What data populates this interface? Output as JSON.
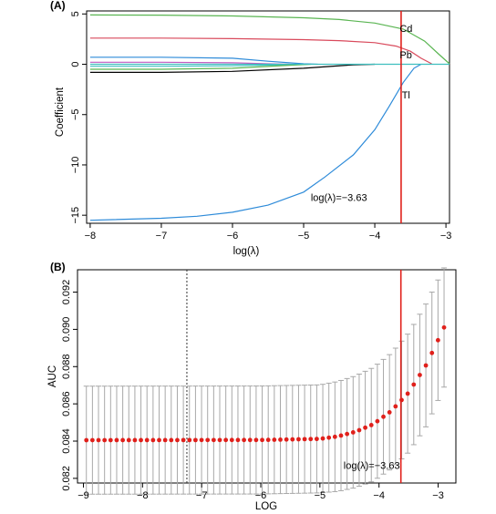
{
  "panel_a": {
    "label": "(A)",
    "chart_data": {
      "type": "line",
      "title": "",
      "xlabel": "log(λ)",
      "ylabel": "Coefficient",
      "xlim": [
        -8.05,
        -2.95
      ],
      "ylim": [
        -15.8,
        5.3
      ],
      "x_ticks": [
        -8,
        -7,
        -6,
        -5,
        -4,
        -3
      ],
      "x_tick_labels": [
        "−8",
        "−7",
        "−6",
        "−5",
        "−4",
        "−3"
      ],
      "y_ticks": [
        -15,
        -10,
        -5,
        0,
        5
      ],
      "y_tick_labels": [
        "−15",
        "−10",
        "−5",
        "0",
        "5"
      ],
      "grid": false,
      "legend": "none",
      "series": [
        {
          "color": "#5ab552",
          "points": [
            [
              -8.0,
              4.9
            ],
            [
              -7.0,
              4.88
            ],
            [
              -6.0,
              4.8
            ],
            [
              -5.0,
              4.62
            ],
            [
              -4.5,
              4.45
            ],
            [
              -4.0,
              4.1
            ],
            [
              -3.6,
              3.5
            ],
            [
              -3.3,
              2.3
            ],
            [
              -3.1,
              1.0
            ],
            [
              -2.95,
              0.05
            ]
          ]
        },
        {
          "color": "#d94a5c",
          "points": [
            [
              -8.0,
              2.6
            ],
            [
              -7.0,
              2.6
            ],
            [
              -6.0,
              2.55
            ],
            [
              -5.0,
              2.45
            ],
            [
              -4.5,
              2.35
            ],
            [
              -4.0,
              2.15
            ],
            [
              -3.7,
              1.8
            ],
            [
              -3.5,
              1.3
            ],
            [
              -3.35,
              0.6
            ],
            [
              -3.2,
              0.05
            ]
          ]
        },
        {
          "color": "#2e8bd9",
          "points": [
            [
              -8.0,
              -15.5
            ],
            [
              -7.0,
              -15.3
            ],
            [
              -6.5,
              -15.1
            ],
            [
              -6.0,
              -14.7
            ],
            [
              -5.5,
              -14.0
            ],
            [
              -5.0,
              -12.7
            ],
            [
              -4.7,
              -11.2
            ],
            [
              -4.3,
              -9.0
            ],
            [
              -4.0,
              -6.5
            ],
            [
              -3.8,
              -4.2
            ],
            [
              -3.6,
              -1.8
            ],
            [
              -3.45,
              -0.4
            ],
            [
              -3.35,
              0.0
            ]
          ]
        },
        {
          "color": "#2e8bd9",
          "points": [
            [
              -8.0,
              0.7
            ],
            [
              -7.0,
              0.7
            ],
            [
              -6.0,
              0.6
            ],
            [
              -5.5,
              0.3
            ],
            [
              -5.0,
              0.05
            ],
            [
              -4.8,
              0.0
            ]
          ]
        },
        {
          "color": "#000000",
          "points": [
            [
              -8.0,
              -0.8
            ],
            [
              -7.0,
              -0.8
            ],
            [
              -6.0,
              -0.7
            ],
            [
              -5.0,
              -0.4
            ],
            [
              -4.3,
              -0.05
            ],
            [
              -4.0,
              0.0
            ]
          ]
        },
        {
          "color": "#3fbfbf",
          "points": [
            [
              -8.0,
              -0.2
            ],
            [
              -7.0,
              -0.2
            ],
            [
              -6.0,
              -0.15
            ],
            [
              -5.3,
              -0.05
            ],
            [
              -5.0,
              0.0
            ]
          ]
        },
        {
          "color": "#5ab552",
          "points": [
            [
              -8.0,
              -0.5
            ],
            [
              -7.0,
              -0.5
            ],
            [
              -6.0,
              -0.4
            ],
            [
              -5.2,
              -0.1
            ],
            [
              -4.9,
              0.0
            ]
          ]
        },
        {
          "color": "#c05ac0",
          "points": [
            [
              -8.0,
              0.2
            ],
            [
              -7.0,
              0.2
            ],
            [
              -6.0,
              0.15
            ],
            [
              -5.5,
              0.05
            ],
            [
              -5.2,
              0.0
            ]
          ]
        },
        {
          "color": "#3fbfbf",
          "points": [
            [
              -8.0,
              0.0
            ],
            [
              -2.95,
              0.0
            ]
          ]
        }
      ],
      "vline": {
        "x": -3.63,
        "color": "#e0201b"
      },
      "annotations": [
        {
          "text": "Cd",
          "x": -3.65,
          "y": 3.2
        },
        {
          "text": "Pb",
          "x": -3.65,
          "y": 0.6
        },
        {
          "text": "Tl",
          "x": -3.62,
          "y": -3.4
        },
        {
          "text": "log(λ)=−3.63",
          "x": -4.9,
          "y": -13.6
        }
      ]
    }
  },
  "panel_b": {
    "label": "(B)",
    "chart_data": {
      "type": "scatter",
      "title": "",
      "xlabel": "LOG",
      "ylabel": "AUC",
      "xlim": [
        -9.1,
        -2.7
      ],
      "ylim": [
        0.08175,
        0.0932
      ],
      "x_ticks": [
        -9,
        -8,
        -7,
        -6,
        -5,
        -4,
        -3
      ],
      "x_tick_labels": [
        "−9",
        "−8",
        "−7",
        "−6",
        "−5",
        "−4",
        "−3"
      ],
      "y_ticks": [
        0.082,
        0.084,
        0.086,
        0.088,
        0.09,
        0.092
      ],
      "y_tick_labels": [
        "0.082",
        "0.084",
        "0.086",
        "0.088",
        "0.090",
        "0.092"
      ],
      "grid": false,
      "legend": "none",
      "n_points": 60,
      "x_start": -8.95,
      "x_end": -2.9,
      "auc_base": 0.08405,
      "error_half_width_base": 0.0029,
      "curve": [
        [
          -8.95,
          0.08405
        ],
        [
          -6.0,
          0.08406
        ],
        [
          -5.0,
          0.08412
        ],
        [
          -4.7,
          0.08425
        ],
        [
          -4.4,
          0.0845
        ],
        [
          -4.1,
          0.0849
        ],
        [
          -3.8,
          0.0856
        ],
        [
          -3.5,
          0.0866
        ],
        [
          -3.2,
          0.0881
        ],
        [
          -2.9,
          0.0901
        ]
      ],
      "error_half_width": [
        [
          -8.95,
          0.0029
        ],
        [
          -5.0,
          0.0029
        ],
        [
          -4.4,
          0.003
        ],
        [
          -3.8,
          0.0031
        ],
        [
          -3.2,
          0.0033
        ],
        [
          -2.9,
          0.0032
        ]
      ],
      "point_color": "#e0201b",
      "errorbar_color": "#a8a8a8",
      "vline_min": {
        "x": -7.25,
        "style": "dotted",
        "color": "#333333"
      },
      "vline_selected": {
        "x": -3.63,
        "color": "#e0201b"
      },
      "annotations": [
        {
          "text": "log(λ)=−3.63",
          "x": -4.6,
          "y": 0.0825
        }
      ]
    }
  }
}
